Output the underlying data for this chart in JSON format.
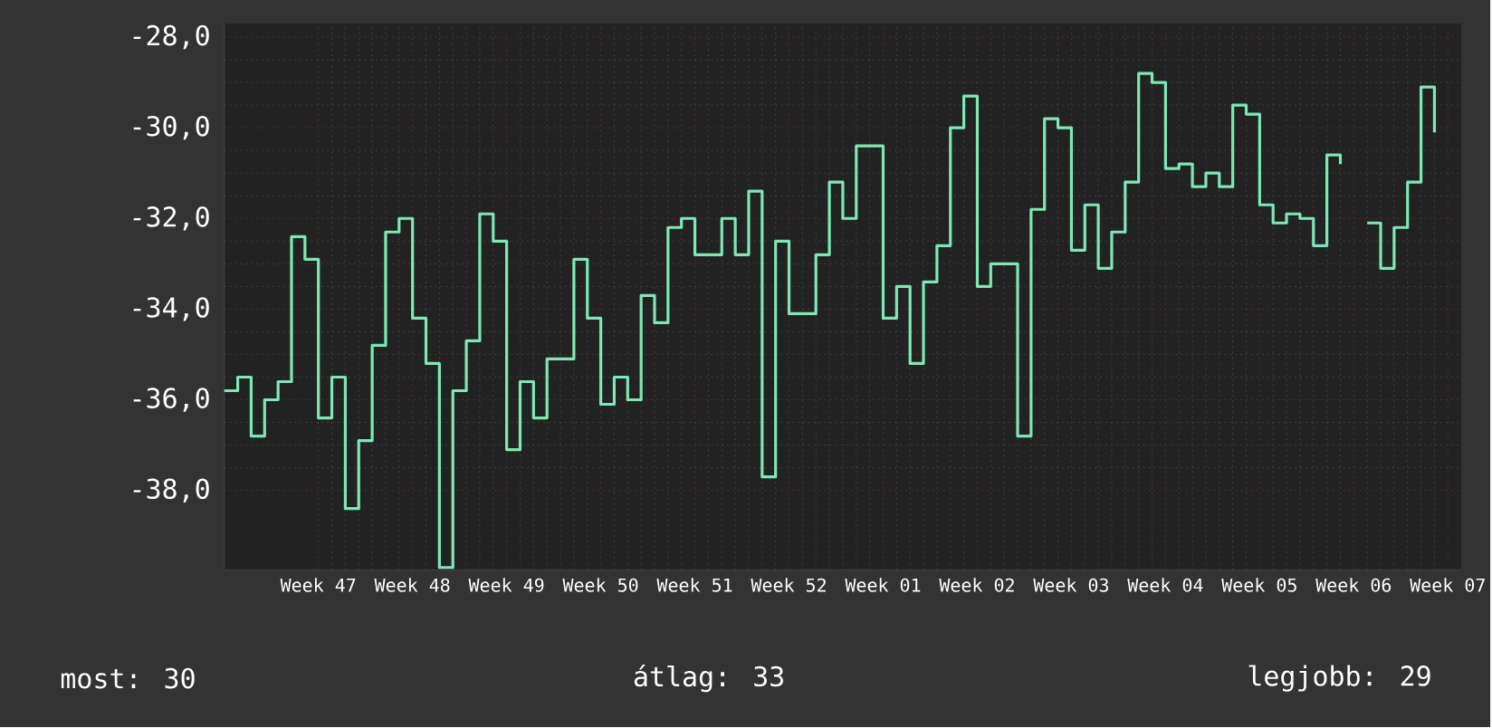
{
  "chart_data": {
    "type": "step",
    "color": "#7de8b4",
    "grid": true,
    "categories": [
      null,
      null,
      null,
      null,
      null,
      null,
      null,
      "Week 47",
      null,
      null,
      null,
      null,
      null,
      null,
      "Week 48",
      null,
      null,
      null,
      null,
      null,
      null,
      "Week 49",
      null,
      null,
      null,
      null,
      null,
      null,
      "Week 50",
      null,
      null,
      null,
      null,
      null,
      null,
      "Week 51",
      null,
      null,
      null,
      null,
      null,
      null,
      "Week 52",
      null,
      null,
      null,
      null,
      null,
      null,
      "Week 01",
      null,
      null,
      null,
      null,
      null,
      null,
      "Week 02",
      null,
      null,
      null,
      null,
      null,
      null,
      "Week 03",
      null,
      null,
      null,
      null,
      null,
      null,
      "Week 04",
      null,
      null,
      null,
      null,
      null,
      null,
      "Week 05",
      null,
      null,
      null,
      null,
      null,
      null,
      "Week 06",
      null,
      null,
      null,
      null,
      null,
      null,
      "Week 07"
    ],
    "values": [
      -35.8,
      -35.5,
      -36.8,
      -36.0,
      -35.6,
      -32.4,
      -32.9,
      -36.4,
      -35.5,
      -38.4,
      -36.9,
      -34.8,
      -32.3,
      -32.0,
      -34.2,
      -35.2,
      -39.7,
      -35.8,
      -34.7,
      -31.9,
      -32.5,
      -37.1,
      -35.6,
      -36.4,
      -35.1,
      -35.1,
      -32.9,
      -34.2,
      -36.1,
      -35.5,
      -36.0,
      -33.7,
      -34.3,
      -32.2,
      -32.0,
      -32.8,
      -32.8,
      -32.0,
      -32.8,
      -31.4,
      -37.7,
      -32.5,
      -34.1,
      -34.1,
      -32.8,
      -31.2,
      -32.0,
      -30.4,
      -30.4,
      -34.2,
      -33.5,
      -35.2,
      -33.4,
      -32.6,
      -30.0,
      -29.3,
      -33.5,
      -33.0,
      -33.0,
      -36.8,
      -31.8,
      -29.8,
      -30.0,
      -32.7,
      -31.7,
      -33.1,
      -32.3,
      -31.2,
      -28.8,
      -29.0,
      -30.9,
      -30.8,
      -31.3,
      -31.0,
      -31.3,
      -29.5,
      -29.7,
      -31.7,
      -32.1,
      -31.9,
      -32.0,
      -32.6,
      -30.6,
      -30.8,
      null,
      -32.1,
      -33.1,
      -32.2,
      -31.2,
      -29.1,
      -30.1,
      null
    ],
    "ylim": [
      -39.75,
      -27.7
    ],
    "yticks": [
      {
        "value": -38,
        "label": "-38,0"
      },
      {
        "value": -36,
        "label": "-36,0"
      },
      {
        "value": -34,
        "label": "-34,0"
      },
      {
        "value": -32,
        "label": "-32,0"
      },
      {
        "value": -30,
        "label": "-30,0"
      },
      {
        "value": -28,
        "label": "-28,0"
      }
    ],
    "annotations": [
      "most: 30",
      "átlag: 33",
      "legjobb: 29"
    ]
  }
}
